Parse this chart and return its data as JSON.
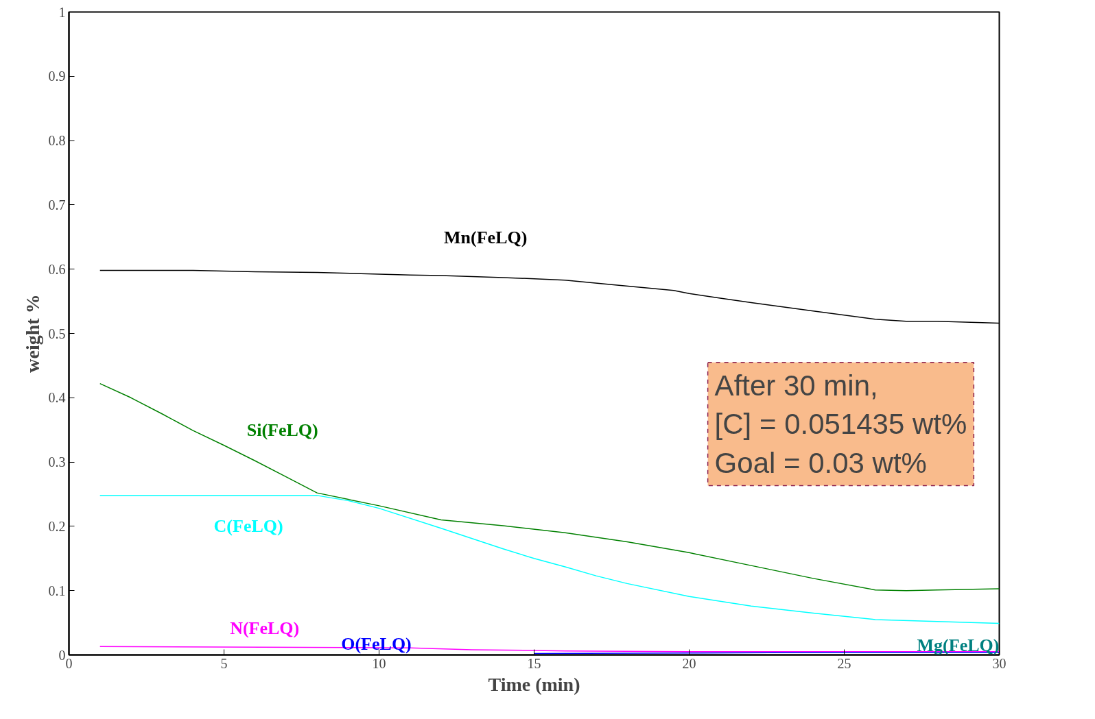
{
  "chart_data": {
    "type": "line",
    "xlabel": "Time (min)",
    "ylabel": "weight %",
    "xlim": [
      0,
      30
    ],
    "ylim": [
      0,
      1
    ],
    "xticks": [
      0,
      5,
      10,
      15,
      20,
      25,
      30
    ],
    "yticks": [
      0,
      0.1,
      0.2,
      0.3,
      0.4,
      0.5,
      0.6,
      0.7,
      0.8,
      0.9,
      1
    ],
    "grid": false,
    "marker": "none",
    "line_style": "solid",
    "series": [
      {
        "name": "Mn(FeLQ)",
        "color": "#000000",
        "x": [
          1,
          4,
          6,
          8,
          11,
          12,
          14,
          16,
          17.5,
          19.5,
          20,
          21,
          22,
          24,
          26,
          27,
          28,
          30
        ],
        "values": [
          0.598,
          0.598,
          0.596,
          0.595,
          0.591,
          0.59,
          0.587,
          0.583,
          0.576,
          0.567,
          0.562,
          0.555,
          0.548,
          0.535,
          0.522,
          0.519,
          0.519,
          0.516
        ]
      },
      {
        "name": "Si(FeLQ)",
        "color": "#008000",
        "x": [
          1,
          2,
          3,
          4,
          5,
          6,
          7,
          8,
          10,
          12,
          14,
          16,
          18,
          20,
          22,
          24,
          26,
          27,
          28,
          30
        ],
        "values": [
          0.422,
          0.4,
          0.375,
          0.349,
          0.326,
          0.302,
          0.277,
          0.252,
          0.232,
          0.21,
          0.201,
          0.19,
          0.176,
          0.159,
          0.139,
          0.119,
          0.101,
          0.1,
          0.101,
          0.103
        ]
      },
      {
        "name": "C(FeLQ)",
        "color": "#00ffff",
        "x": [
          1,
          8,
          9,
          10,
          12,
          14,
          15,
          16,
          17,
          18,
          20,
          22,
          24,
          26,
          28,
          30
        ],
        "values": [
          0.248,
          0.248,
          0.24,
          0.228,
          0.197,
          0.165,
          0.15,
          0.137,
          0.123,
          0.111,
          0.091,
          0.076,
          0.065,
          0.055,
          0.052,
          0.049
        ]
      },
      {
        "name": "N(FeLQ)",
        "color": "#ff00ff",
        "x": [
          1,
          11,
          13,
          15,
          16,
          20,
          30
        ],
        "values": [
          0.013,
          0.011,
          0.008,
          0.007,
          0.006,
          0.005,
          0.005
        ]
      },
      {
        "name": "O(FeLQ)",
        "color": "#0000ff",
        "x": [
          15,
          20,
          25,
          30
        ],
        "values": [
          0.002,
          0.003,
          0.004,
          0.004
        ]
      },
      {
        "name": "Mg(FeLQ)",
        "color": "#008080"
      }
    ],
    "annotations": [
      " After 30 min,\n[C] = 0.051435 wt%\nGoal = 0.03 wt%"
    ]
  }
}
